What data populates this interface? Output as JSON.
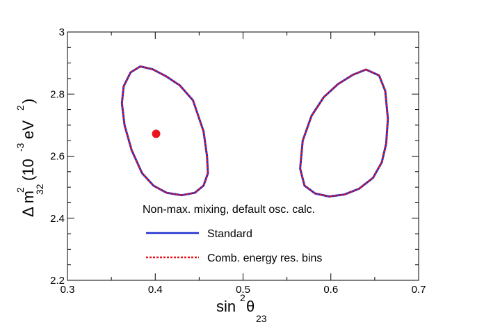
{
  "chart_data": {
    "type": "line",
    "xlabel": {
      "main": "sin",
      "sup": "2",
      "theta": "θ",
      "sub": "23"
    },
    "ylabel": {
      "delta": "Δ m",
      "sup": "2",
      "sub": "32",
      "paren_open": "(10",
      "exp": "-3",
      "unit": " eV",
      "unit_sup": "2",
      "paren_close": ")"
    },
    "xlim": [
      0.3,
      0.7
    ],
    "ylim": [
      2.2,
      3.0
    ],
    "xticks": [
      "0.3",
      "0.4",
      "0.5",
      "0.6",
      "0.7"
    ],
    "yticks": [
      "2.2",
      "2.4",
      "2.6",
      "2.8",
      "3"
    ],
    "grid": false,
    "legend_title": "Non-max. mixing, default osc. calc.",
    "legend_placement": "bottom-center",
    "best_fit": {
      "x": 0.401,
      "y": 2.672,
      "color": "#e8151d"
    },
    "series": [
      {
        "name": "Standard",
        "color": "#1f2ecf",
        "style": "solid",
        "contours": [
          [
            [
              0.383,
              2.889
            ],
            [
              0.397,
              2.88
            ],
            [
              0.412,
              2.858
            ],
            [
              0.428,
              2.828
            ],
            [
              0.443,
              2.78
            ],
            [
              0.455,
              2.68
            ],
            [
              0.459,
              2.6
            ],
            [
              0.46,
              2.545
            ],
            [
              0.455,
              2.505
            ],
            [
              0.445,
              2.482
            ],
            [
              0.43,
              2.474
            ],
            [
              0.413,
              2.482
            ],
            [
              0.398,
              2.505
            ],
            [
              0.385,
              2.545
            ],
            [
              0.373,
              2.62
            ],
            [
              0.365,
              2.7
            ],
            [
              0.362,
              2.77
            ],
            [
              0.364,
              2.825
            ],
            [
              0.372,
              2.87
            ],
            [
              0.383,
              2.889
            ]
          ],
          [
            [
              0.64,
              2.879
            ],
            [
              0.625,
              2.862
            ],
            [
              0.608,
              2.832
            ],
            [
              0.592,
              2.79
            ],
            [
              0.578,
              2.73
            ],
            [
              0.568,
              2.65
            ],
            [
              0.565,
              2.56
            ],
            [
              0.57,
              2.505
            ],
            [
              0.582,
              2.48
            ],
            [
              0.598,
              2.47
            ],
            [
              0.615,
              2.476
            ],
            [
              0.632,
              2.495
            ],
            [
              0.648,
              2.53
            ],
            [
              0.658,
              2.58
            ],
            [
              0.663,
              2.64
            ],
            [
              0.665,
              2.72
            ],
            [
              0.662,
              2.81
            ],
            [
              0.655,
              2.86
            ],
            [
              0.64,
              2.879
            ]
          ]
        ]
      },
      {
        "name": "Comb. energy res. bins",
        "color": "#e8151d",
        "style": "dotted",
        "contours": [
          [
            [
              0.383,
              2.889
            ],
            [
              0.397,
              2.88
            ],
            [
              0.412,
              2.858
            ],
            [
              0.428,
              2.828
            ],
            [
              0.443,
              2.78
            ],
            [
              0.455,
              2.68
            ],
            [
              0.459,
              2.6
            ],
            [
              0.46,
              2.545
            ],
            [
              0.455,
              2.505
            ],
            [
              0.445,
              2.482
            ],
            [
              0.43,
              2.474
            ],
            [
              0.413,
              2.482
            ],
            [
              0.398,
              2.505
            ],
            [
              0.385,
              2.545
            ],
            [
              0.373,
              2.62
            ],
            [
              0.365,
              2.7
            ],
            [
              0.362,
              2.77
            ],
            [
              0.364,
              2.825
            ],
            [
              0.372,
              2.87
            ],
            [
              0.383,
              2.889
            ]
          ],
          [
            [
              0.64,
              2.879
            ],
            [
              0.625,
              2.862
            ],
            [
              0.608,
              2.832
            ],
            [
              0.592,
              2.79
            ],
            [
              0.578,
              2.73
            ],
            [
              0.568,
              2.65
            ],
            [
              0.565,
              2.56
            ],
            [
              0.57,
              2.505
            ],
            [
              0.582,
              2.48
            ],
            [
              0.598,
              2.47
            ],
            [
              0.615,
              2.476
            ],
            [
              0.632,
              2.495
            ],
            [
              0.648,
              2.53
            ],
            [
              0.658,
              2.58
            ],
            [
              0.663,
              2.64
            ],
            [
              0.665,
              2.72
            ],
            [
              0.662,
              2.81
            ],
            [
              0.655,
              2.86
            ],
            [
              0.64,
              2.879
            ]
          ]
        ]
      }
    ]
  }
}
